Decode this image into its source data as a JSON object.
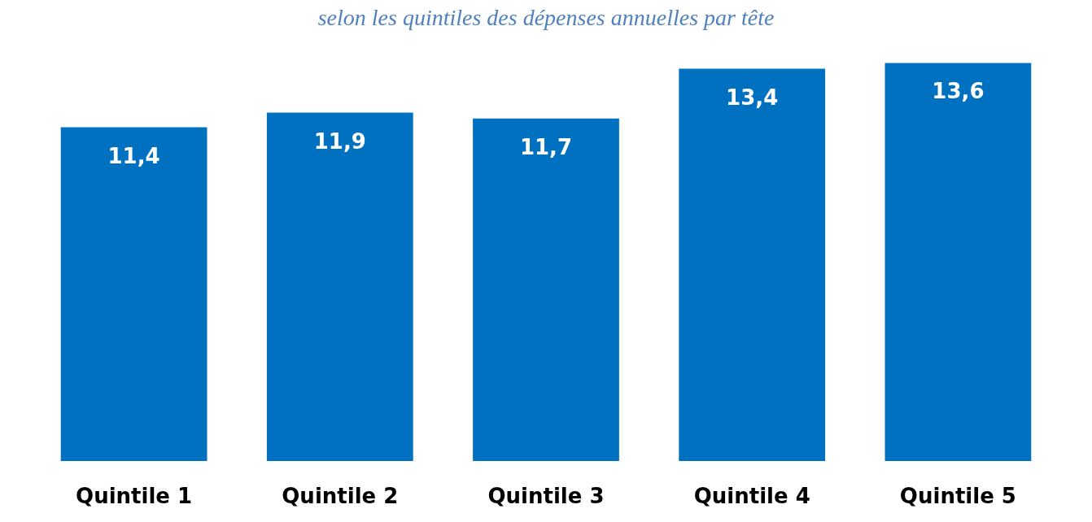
{
  "chart_data": {
    "type": "bar",
    "title": "selon les quintiles des dépenses annuelles par tête",
    "categories": [
      "Quintile 1",
      "Quintile 2",
      "Quintile 3",
      "Quintile 4",
      "Quintile 5"
    ],
    "values": [
      11.4,
      11.9,
      11.7,
      13.4,
      13.6
    ],
    "color": "#0070c0",
    "value_labels": [
      "11,4",
      "11,9",
      "11,7",
      "13,4",
      "13,6"
    ],
    "tick_labels": "x"
  }
}
